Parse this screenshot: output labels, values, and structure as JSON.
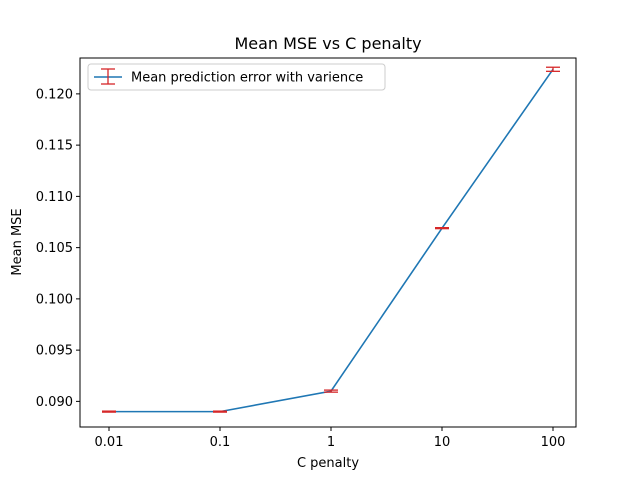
{
  "chart_data": {
    "type": "line",
    "title": "Mean MSE vs C penalty",
    "xlabel": "C penalty",
    "ylabel": "Mean MSE",
    "x_ticks": [
      "0.01",
      "0.1",
      "1",
      "10",
      "100"
    ],
    "x_scale": "categorical (log-spaced)",
    "ylim": [
      0.0875,
      0.1235
    ],
    "y_ticks": [
      0.09,
      0.095,
      0.1,
      0.105,
      0.11,
      0.115,
      0.12
    ],
    "y_tick_labels": [
      "0.090",
      "0.095",
      "0.100",
      "0.105",
      "0.110",
      "0.115",
      "0.120"
    ],
    "series": [
      {
        "name": "Mean prediction error with varience",
        "color": "#1f77b4",
        "errorbar_color": "#d62728",
        "x": [
          "0.01",
          "0.1",
          "1",
          "10",
          "100"
        ],
        "values": [
          0.089,
          0.089,
          0.091,
          0.1069,
          0.1224
        ],
        "errors": [
          5e-05,
          5e-05,
          0.0001,
          5e-05,
          0.0002
        ]
      }
    ],
    "legend": {
      "placement": "upper-left"
    },
    "grid": false
  }
}
